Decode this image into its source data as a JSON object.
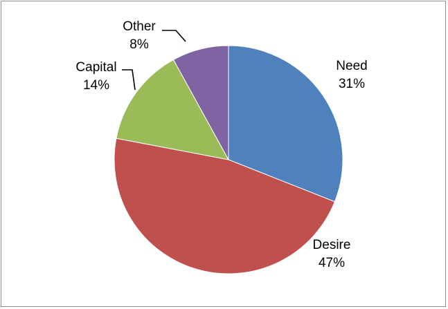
{
  "chart_data": {
    "type": "pie",
    "title": "",
    "start_angle_deg": 0,
    "direction": "clockwise",
    "legend": "none",
    "data_labels": "outside",
    "slices": [
      {
        "label": "Need",
        "value": 31,
        "value_label": "31%",
        "color": "#4f81bd"
      },
      {
        "label": "Desire",
        "value": 47,
        "value_label": "47%",
        "color": "#c0504d"
      },
      {
        "label": "Capital",
        "value": 14,
        "value_label": "14%",
        "color": "#9bbb59"
      },
      {
        "label": "Other",
        "value": 8,
        "value_label": "8%",
        "color": "#8064a2"
      }
    ]
  }
}
